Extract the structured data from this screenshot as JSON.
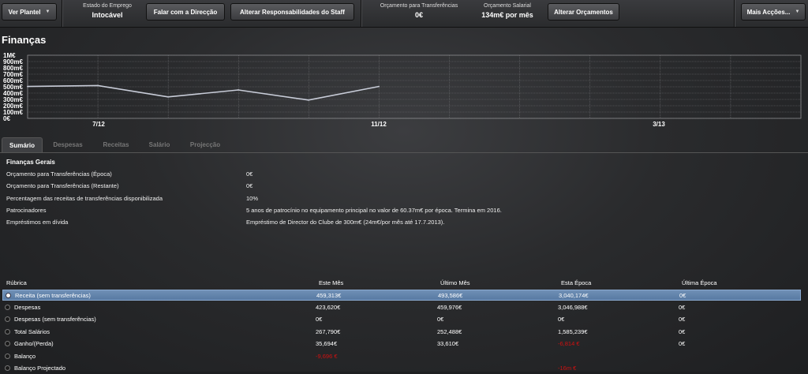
{
  "topbar": {
    "ver_plantel": "Ver Plantel",
    "employment_label": "Estado do Emprego",
    "employment_value": "Intocável",
    "talk_button": "Falar com a Direcção",
    "staff_button": "Alterar Responsabilidades do Staff",
    "transfer_budget_label": "Orçamento para Transferências",
    "transfer_budget_value": "0€",
    "wage_budget_label": "Orçamento Salarial",
    "wage_budget_value": "134m€ por mês",
    "alter_budgets_button": "Alterar Orçamentos",
    "more_actions_button": "Mais Acções..."
  },
  "page_title": "Finanças",
  "chart_data": {
    "type": "line",
    "y_ticks": [
      "1M€",
      "900m€",
      "800m€",
      "700m€",
      "600m€",
      "500m€",
      "400m€",
      "300m€",
      "200m€",
      "100m€",
      "0€"
    ],
    "x_labels": [
      "7/12",
      "11/12",
      "3/13"
    ],
    "ylim": [
      0,
      1000000
    ],
    "values": [
      505000,
      520000,
      340000,
      450000,
      290000,
      505000
    ],
    "grid": true,
    "line_color": "#c8ccd8"
  },
  "tabs": [
    "Sumário",
    "Despesas",
    "Receitas",
    "Salário",
    "Projecção"
  ],
  "section_title": "Finanças Gerais",
  "info": [
    {
      "label": "Orçamento para Transferências (Época)",
      "value": "0€"
    },
    {
      "label": "Orçamento para Transferências (Restante)",
      "value": "0€"
    },
    {
      "label": "Percentagem das receitas de transferências disponibilizada",
      "value": "10%"
    },
    {
      "label": "Patrocinadores",
      "value": "5 anos de patrocínio no equipamento principal no valor de 60.37m€ por época. Termina em 2016."
    },
    {
      "label": "Empréstimos em dívida",
      "value": "Empréstimo de Director do Clube de 300m€ (24m€/por mês até 17.7.2013)."
    }
  ],
  "table": {
    "headers": [
      "Rúbrica",
      "Este Mês",
      "Último Mês",
      "Esta Época",
      "Última Época"
    ],
    "rows": [
      {
        "name": "Receita (sem transferências)",
        "cells": [
          "459,313€",
          "493,586€",
          "3,040,174€",
          "0€"
        ],
        "neg": [
          false,
          false,
          false,
          false
        ],
        "selected": true
      },
      {
        "name": "Despesas",
        "cells": [
          "423,620€",
          "459,976€",
          "3,046,988€",
          "0€"
        ],
        "neg": [
          false,
          false,
          false,
          false
        ]
      },
      {
        "name": "Despesas (sem transferências)",
        "cells": [
          "0€",
          "0€",
          "0€",
          "0€"
        ],
        "neg": [
          false,
          false,
          false,
          false
        ]
      },
      {
        "name": "Total Salários",
        "cells": [
          "267,790€",
          "252,488€",
          "1,585,239€",
          "0€"
        ],
        "neg": [
          false,
          false,
          false,
          false
        ]
      },
      {
        "name": "Ganho/(Perda)",
        "cells": [
          "35,694€",
          "33,610€",
          "-6,814 €",
          "0€"
        ],
        "neg": [
          false,
          false,
          true,
          false
        ]
      },
      {
        "name": "Balanço",
        "cells": [
          "-9,696 €",
          "",
          "",
          ""
        ],
        "neg": [
          true,
          false,
          false,
          false
        ]
      },
      {
        "name": "Balanço Projectado",
        "cells": [
          "",
          "",
          "-16m €",
          ""
        ],
        "neg": [
          false,
          false,
          true,
          false
        ]
      }
    ]
  },
  "colors": {
    "negative": "#d01010",
    "selected_row": "#6f8fb5"
  }
}
